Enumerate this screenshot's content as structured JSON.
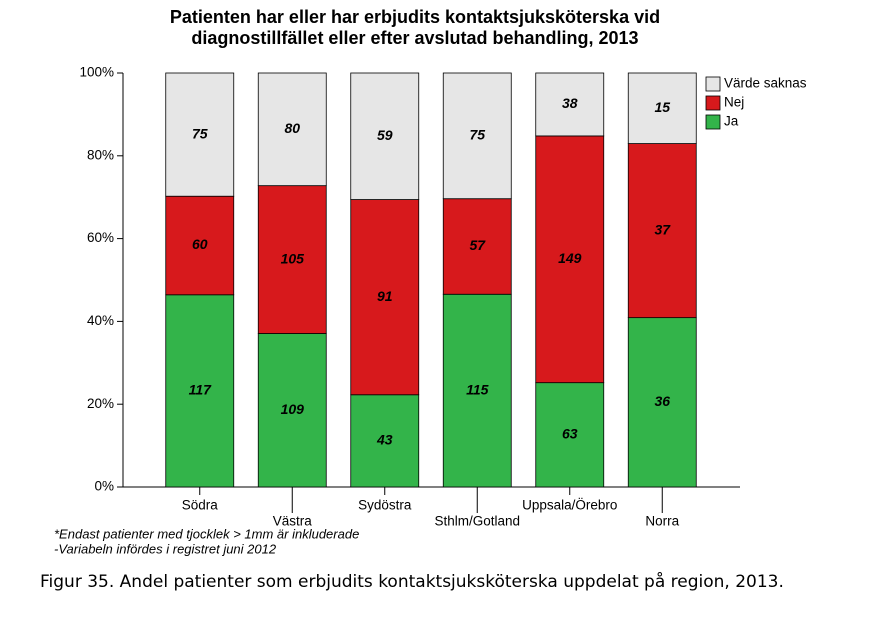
{
  "chart_data": {
    "type": "bar",
    "stacking": "percent",
    "title": [
      "Patienten har eller har erbjudits kontaktsjuksköterska vid",
      "diagnostillfället eller efter avslutad behandling, 2013"
    ],
    "categories": [
      "Södra",
      "Västra",
      "Sydöstra",
      "Sthlm/Gotland",
      "Uppsala/Örebro",
      "Norra"
    ],
    "series": [
      {
        "name": "Ja",
        "color": "#33b44a",
        "values": [
          117,
          109,
          43,
          115,
          63,
          36
        ]
      },
      {
        "name": "Nej",
        "color": "#d7191c",
        "values": [
          60,
          105,
          91,
          57,
          149,
          37
        ]
      },
      {
        "name": "Värde saknas",
        "color": "#e6e6e6",
        "values": [
          75,
          80,
          59,
          75,
          38,
          15
        ]
      }
    ],
    "ylim": [
      0,
      100
    ],
    "yticks": [
      {
        "value": 0,
        "label": "0%"
      },
      {
        "value": 20,
        "label": "20%"
      },
      {
        "value": 40,
        "label": "40%"
      },
      {
        "value": 60,
        "label": "60%"
      },
      {
        "value": 80,
        "label": "80%"
      },
      {
        "value": 100,
        "label": "100%"
      }
    ],
    "legend": "upper right",
    "notes": [
      "*Endast patienter med tjocklek > 1mm är inkluderade",
      "-Variabeln infördes i registret juni 2012"
    ],
    "caption": "Figur 35. Andel patienter som erbjudits kontaktsjuksköterska uppdelat på region, 2013."
  }
}
